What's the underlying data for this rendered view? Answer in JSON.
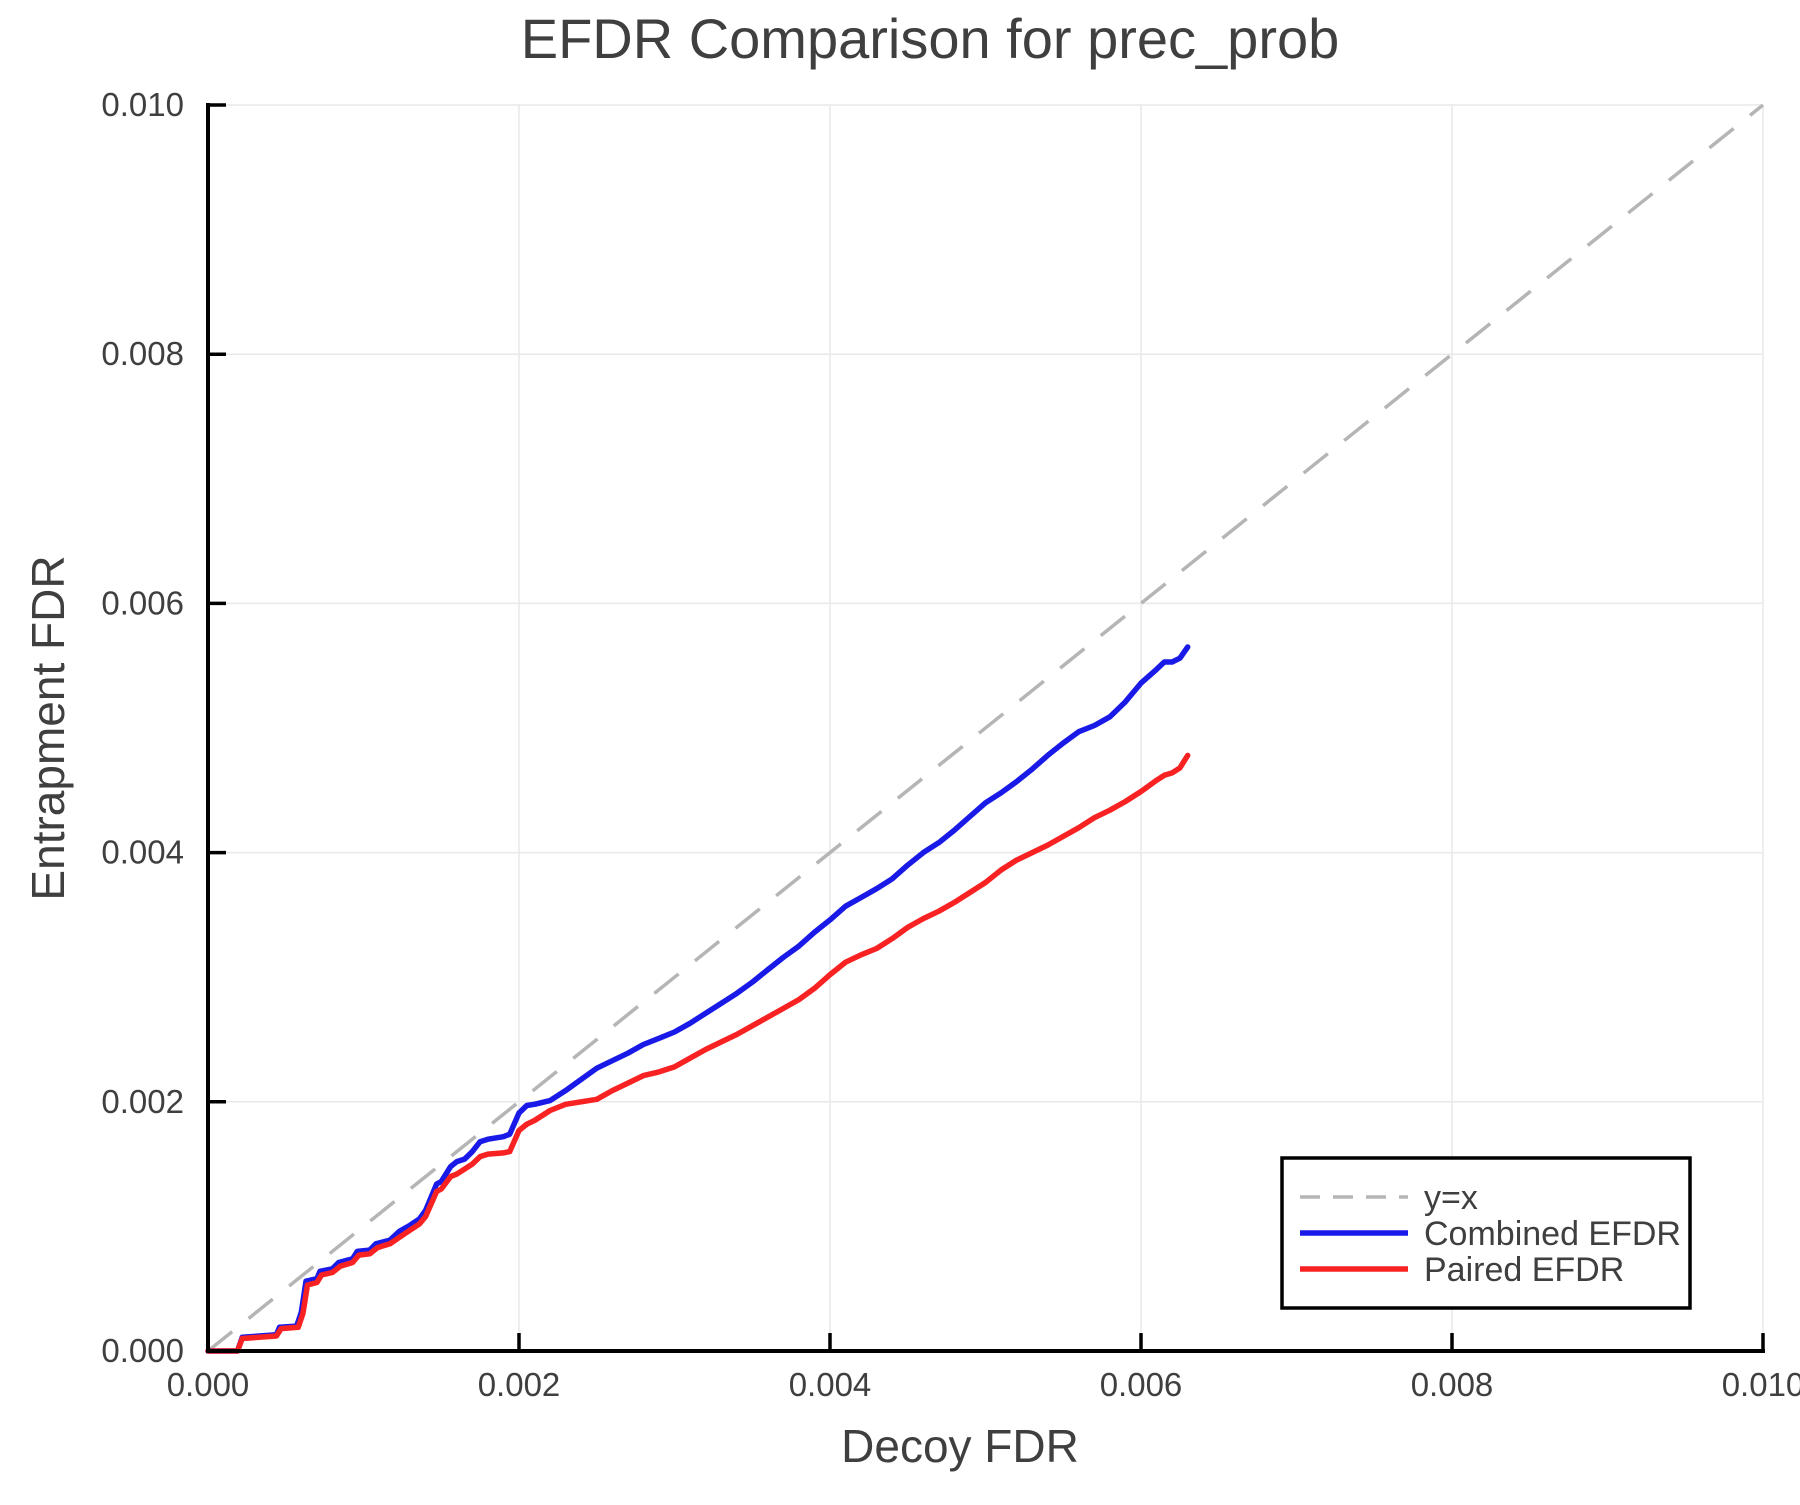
{
  "colors": {
    "background": "#ffffff",
    "grid": "#e9e9e9",
    "spine": "#000000",
    "text": "#3f3f3f",
    "reference": "#b5b5b5",
    "combined": "#1a1ae8",
    "paired": "#f92222"
  },
  "legend": {
    "items": [
      {
        "label": "y=x"
      },
      {
        "label": "Combined EFDR"
      },
      {
        "label": "Paired EFDR"
      }
    ]
  },
  "chart_data": {
    "type": "line",
    "title": "EFDR Comparison for prec_prob",
    "xlabel": "Decoy FDR",
    "ylabel": "Entrapment FDR",
    "xlim": [
      0,
      0.01
    ],
    "ylim": [
      0,
      0.01
    ],
    "grid": true,
    "legend_position": "lower right",
    "xticks": {
      "values": [
        0,
        0.002,
        0.004,
        0.006,
        0.008,
        0.01
      ],
      "labels": [
        "0.000",
        "0.002",
        "0.004",
        "0.006",
        "0.008",
        "0.010"
      ]
    },
    "yticks": {
      "values": [
        0,
        0.002,
        0.004,
        0.006,
        0.008,
        0.01
      ],
      "labels": [
        "0.000",
        "0.002",
        "0.004",
        "0.006",
        "0.008",
        "0.010"
      ]
    },
    "reference_line": {
      "label": "y=x",
      "style": "dashed",
      "color": "#b5b5b5",
      "from": [
        0,
        0
      ],
      "to": [
        0.01,
        0.01
      ]
    },
    "series": [
      {
        "name": "Combined EFDR",
        "color": "#1a1ae8",
        "points": [
          [
            0,
            0
          ],
          [
            0.00019,
            0
          ],
          [
            0.00022,
            0.00011
          ],
          [
            0.00044,
            0.00013
          ],
          [
            0.00046,
            0.00019
          ],
          [
            0.00057,
            0.0002
          ],
          [
            0.0006,
            0.00031
          ],
          [
            0.00063,
            0.00056
          ],
          [
            0.0007,
            0.00058
          ],
          [
            0.00072,
            0.00064
          ],
          [
            0.0008,
            0.00066
          ],
          [
            0.00084,
            0.00071
          ],
          [
            0.00093,
            0.00074
          ],
          [
            0.00096,
            0.0008
          ],
          [
            0.00104,
            0.00081
          ],
          [
            0.00108,
            0.00086
          ],
          [
            0.00117,
            0.00089
          ],
          [
            0.00123,
            0.00096
          ],
          [
            0.0013,
            0.00101
          ],
          [
            0.00136,
            0.00106
          ],
          [
            0.0014,
            0.00113
          ],
          [
            0.00147,
            0.00134
          ],
          [
            0.0015,
            0.00136
          ],
          [
            0.00156,
            0.00148
          ],
          [
            0.0016,
            0.00152
          ],
          [
            0.00165,
            0.00154
          ],
          [
            0.0017,
            0.0016
          ],
          [
            0.00175,
            0.00168
          ],
          [
            0.0018,
            0.0017
          ],
          [
            0.0019,
            0.00172
          ],
          [
            0.00194,
            0.00174
          ],
          [
            0.002,
            0.00191
          ],
          [
            0.00205,
            0.00197
          ],
          [
            0.0021,
            0.00198
          ],
          [
            0.0022,
            0.00201
          ],
          [
            0.0023,
            0.00209
          ],
          [
            0.0024,
            0.00218
          ],
          [
            0.0025,
            0.00227
          ],
          [
            0.0026,
            0.00233
          ],
          [
            0.0027,
            0.00239
          ],
          [
            0.0028,
            0.00246
          ],
          [
            0.0029,
            0.00251
          ],
          [
            0.003,
            0.00256
          ],
          [
            0.0031,
            0.00263
          ],
          [
            0.0032,
            0.00271
          ],
          [
            0.0033,
            0.00279
          ],
          [
            0.0034,
            0.00287
          ],
          [
            0.0035,
            0.00296
          ],
          [
            0.0036,
            0.00306
          ],
          [
            0.0037,
            0.00316
          ],
          [
            0.0038,
            0.00325
          ],
          [
            0.0039,
            0.00336
          ],
          [
            0.004,
            0.00346
          ],
          [
            0.0041,
            0.00357
          ],
          [
            0.0042,
            0.00364
          ],
          [
            0.0043,
            0.00371
          ],
          [
            0.0044,
            0.00379
          ],
          [
            0.0045,
            0.0039
          ],
          [
            0.0046,
            0.004
          ],
          [
            0.0047,
            0.00408
          ],
          [
            0.0048,
            0.00418
          ],
          [
            0.0049,
            0.00429
          ],
          [
            0.005,
            0.0044
          ],
          [
            0.0051,
            0.00448
          ],
          [
            0.0052,
            0.00457
          ],
          [
            0.0053,
            0.00467
          ],
          [
            0.0054,
            0.00478
          ],
          [
            0.0055,
            0.00488
          ],
          [
            0.0056,
            0.00497
          ],
          [
            0.0057,
            0.00502
          ],
          [
            0.0058,
            0.00509
          ],
          [
            0.0059,
            0.00521
          ],
          [
            0.006,
            0.00536
          ],
          [
            0.0061,
            0.00547
          ],
          [
            0.00615,
            0.00553
          ],
          [
            0.0062,
            0.00553
          ],
          [
            0.00625,
            0.00556
          ],
          [
            0.0063,
            0.00565
          ]
        ]
      },
      {
        "name": "Paired EFDR",
        "color": "#f92222",
        "points": [
          [
            0,
            0
          ],
          [
            0.00019,
            0
          ],
          [
            0.00022,
            0.0001
          ],
          [
            0.00044,
            0.00012
          ],
          [
            0.00047,
            0.00018
          ],
          [
            0.00058,
            0.00019
          ],
          [
            0.00061,
            0.0003
          ],
          [
            0.00064,
            0.00053
          ],
          [
            0.0007,
            0.00055
          ],
          [
            0.00073,
            0.00061
          ],
          [
            0.0008,
            0.00063
          ],
          [
            0.00085,
            0.00068
          ],
          [
            0.00093,
            0.00071
          ],
          [
            0.00097,
            0.00077
          ],
          [
            0.00104,
            0.00078
          ],
          [
            0.00109,
            0.00083
          ],
          [
            0.00117,
            0.00086
          ],
          [
            0.00124,
            0.00092
          ],
          [
            0.0013,
            0.00097
          ],
          [
            0.00136,
            0.00102
          ],
          [
            0.0014,
            0.00108
          ],
          [
            0.00147,
            0.00128
          ],
          [
            0.0015,
            0.0013
          ],
          [
            0.00156,
            0.0014
          ],
          [
            0.0016,
            0.00142
          ],
          [
            0.00165,
            0.00146
          ],
          [
            0.0017,
            0.0015
          ],
          [
            0.00175,
            0.00156
          ],
          [
            0.0018,
            0.00158
          ],
          [
            0.0019,
            0.00159
          ],
          [
            0.00194,
            0.0016
          ],
          [
            0.002,
            0.00177
          ],
          [
            0.00205,
            0.00182
          ],
          [
            0.0021,
            0.00185
          ],
          [
            0.0022,
            0.00193
          ],
          [
            0.0023,
            0.00198
          ],
          [
            0.0024,
            0.002
          ],
          [
            0.0025,
            0.00202
          ],
          [
            0.0026,
            0.00209
          ],
          [
            0.0027,
            0.00215
          ],
          [
            0.0028,
            0.00221
          ],
          [
            0.0029,
            0.00224
          ],
          [
            0.003,
            0.00228
          ],
          [
            0.0031,
            0.00235
          ],
          [
            0.0032,
            0.00242
          ],
          [
            0.0033,
            0.00248
          ],
          [
            0.0034,
            0.00254
          ],
          [
            0.0035,
            0.00261
          ],
          [
            0.0036,
            0.00268
          ],
          [
            0.0037,
            0.00275
          ],
          [
            0.0038,
            0.00282
          ],
          [
            0.0039,
            0.00291
          ],
          [
            0.004,
            0.00302
          ],
          [
            0.0041,
            0.00312
          ],
          [
            0.0042,
            0.00318
          ],
          [
            0.0043,
            0.00323
          ],
          [
            0.0044,
            0.00331
          ],
          [
            0.0045,
            0.0034
          ],
          [
            0.0046,
            0.00347
          ],
          [
            0.0047,
            0.00353
          ],
          [
            0.0048,
            0.0036
          ],
          [
            0.0049,
            0.00368
          ],
          [
            0.005,
            0.00376
          ],
          [
            0.0051,
            0.00386
          ],
          [
            0.0052,
            0.00394
          ],
          [
            0.0053,
            0.004
          ],
          [
            0.0054,
            0.00406
          ],
          [
            0.0055,
            0.00413
          ],
          [
            0.0056,
            0.0042
          ],
          [
            0.0057,
            0.00428
          ],
          [
            0.0058,
            0.00434
          ],
          [
            0.0059,
            0.00441
          ],
          [
            0.006,
            0.00449
          ],
          [
            0.0061,
            0.00458
          ],
          [
            0.00615,
            0.00462
          ],
          [
            0.0062,
            0.00464
          ],
          [
            0.00625,
            0.00468
          ],
          [
            0.0063,
            0.00478
          ]
        ]
      }
    ]
  }
}
